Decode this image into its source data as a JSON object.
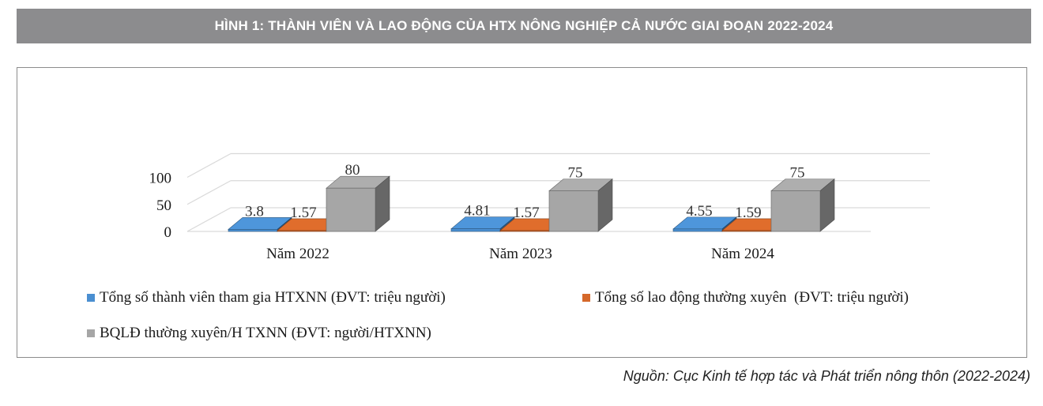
{
  "figure": {
    "title": "HÌNH 1: THÀNH VIÊN VÀ LAO ĐỘNG CỦA HTX NÔNG NGHIỆP CẢ NƯỚC GIAI ĐOẠN 2022-2024",
    "source": "Nguồn: Cục Kinh tế hợp tác và Phát triển nông thôn (2022-2024)"
  },
  "chart_data": {
    "type": "bar",
    "style": "3d-clustered-column",
    "categories": [
      "Năm 2022",
      "Năm 2023",
      "Năm 2024"
    ],
    "series": [
      {
        "name": "Tổng số thành viên tham gia HTXNN (ĐVT: triệu người)",
        "values": [
          3.8,
          4.81,
          4.55
        ],
        "color": "#4a8fd1",
        "labels": [
          "3.8",
          "4.81",
          "4.55"
        ]
      },
      {
        "name": "Tổng số lao động thường xuyên  (ĐVT: triệu người)",
        "values": [
          1.57,
          1.57,
          1.59
        ],
        "color": "#d5682a",
        "labels": [
          "1.57",
          "1.57",
          "1.59"
        ]
      },
      {
        "name": "BQLĐ thường xuyên/H TXNN (ĐVT: người/HTXNN)",
        "values": [
          80,
          75,
          75
        ],
        "color": "#a6a6a6",
        "labels": [
          "80",
          "75",
          "75"
        ]
      }
    ],
    "yticks": [
      "0",
      "50",
      "100"
    ],
    "ylim": [
      0,
      100
    ],
    "grid": true,
    "legend_position": "bottom"
  }
}
